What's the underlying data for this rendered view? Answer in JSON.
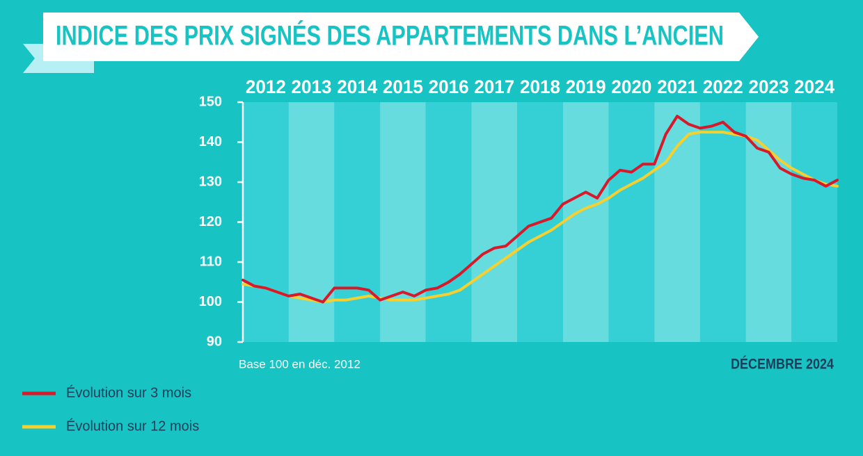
{
  "chart_data": {
    "type": "line",
    "title": "INDICE DES PRIX SIGNÉS DES APPARTEMENTS DANS L’ANCIEN",
    "note": "Base 100 en déc. 2012",
    "date_label": "DÉCEMBRE 2024",
    "categories": [
      "2012",
      "2013",
      "2014",
      "2015",
      "2016",
      "2017",
      "2018",
      "2019",
      "2020",
      "2021",
      "2022",
      "2023",
      "2024"
    ],
    "x": [
      2012,
      2012.25,
      2012.5,
      2012.75,
      2013,
      2013.25,
      2013.5,
      2013.75,
      2014,
      2014.25,
      2014.5,
      2014.75,
      2015,
      2015.25,
      2015.5,
      2015.75,
      2016,
      2016.25,
      2016.5,
      2016.75,
      2017,
      2017.25,
      2017.5,
      2017.75,
      2018,
      2018.25,
      2018.5,
      2018.75,
      2019,
      2019.25,
      2019.5,
      2019.75,
      2020,
      2020.25,
      2020.5,
      2020.75,
      2021,
      2021.25,
      2021.5,
      2021.75,
      2022,
      2022.25,
      2022.5,
      2022.75,
      2023,
      2023.25,
      2023.5,
      2023.75,
      2024,
      2024.25,
      2024.5,
      2024.75,
      2025
    ],
    "xlim": [
      2012,
      2025
    ],
    "ylim": [
      90,
      150
    ],
    "yticks": [
      90,
      100,
      110,
      120,
      130,
      140,
      150
    ],
    "series": [
      {
        "name": "Évolution sur 3 mois",
        "color": "#d7192a",
        "values": [
          105.5,
          104,
          103.5,
          102.5,
          101.5,
          102,
          101,
          100,
          103.5,
          103.5,
          103.5,
          103,
          100.5,
          101.5,
          102.5,
          101.5,
          103,
          103.5,
          105,
          107,
          109.5,
          112,
          113.5,
          114,
          116.5,
          119,
          120,
          121,
          124.5,
          126,
          127.5,
          126,
          130.5,
          133,
          132.5,
          134.5,
          134.5,
          142,
          146.5,
          144.5,
          143.5,
          144,
          145,
          142.5,
          141.5,
          138.5,
          137.5,
          133.5,
          132,
          131,
          130.5,
          129,
          130.5
        ]
      },
      {
        "name": "Évolution sur 12 mois",
        "color": "#f5d02e",
        "values": [
          104.5,
          104,
          103.5,
          102.5,
          101.5,
          101,
          100.5,
          100,
          100.5,
          100.5,
          101,
          101.5,
          101,
          100.5,
          100.5,
          100.5,
          101,
          101.5,
          102,
          103,
          105,
          107,
          109,
          111,
          113,
          115,
          116.5,
          118,
          120,
          122,
          123.5,
          124.5,
          126,
          128,
          129.5,
          131,
          133,
          135,
          139,
          142,
          142.5,
          142.5,
          142.5,
          142,
          141.5,
          140.5,
          138,
          135.5,
          133.5,
          132,
          130.5,
          129.5,
          129
        ]
      }
    ]
  }
}
